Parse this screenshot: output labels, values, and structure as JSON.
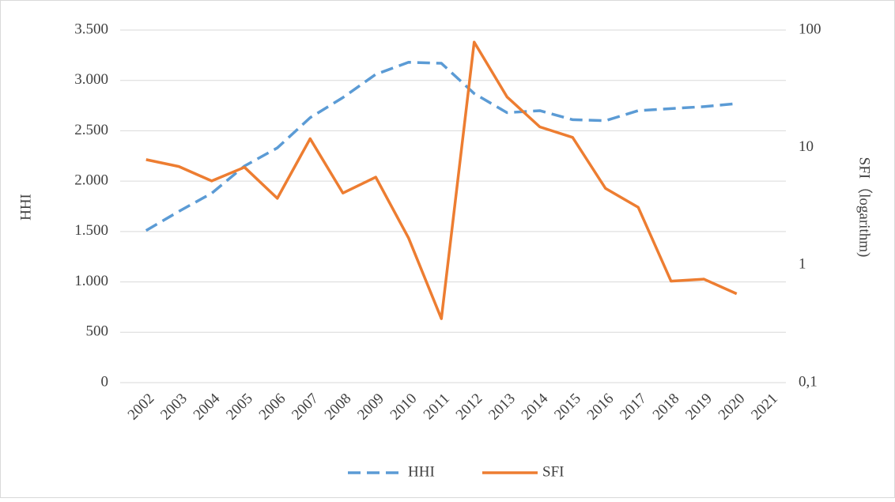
{
  "chart_data": {
    "type": "line",
    "categories": [
      "2002",
      "2003",
      "2004",
      "2005",
      "2006",
      "2007",
      "2008",
      "2009",
      "2010",
      "2011",
      "2012",
      "2013",
      "2014",
      "2015",
      "2016",
      "2017",
      "2018",
      "2019",
      "2020",
      "2021"
    ],
    "series": [
      {
        "name": "HHI",
        "color": "#5b9bd5",
        "dash": "dashed",
        "values": [
          1510,
          1700,
          1880,
          2150,
          2330,
          2630,
          2830,
          3060,
          3180,
          3170,
          2870,
          2680,
          2700,
          2610,
          2600,
          2700,
          2720,
          2740,
          2770,
          null
        ]
      },
      {
        "name": "SFI",
        "color": "#ed7d31",
        "axis": "y2",
        "values": [
          7.9,
          6.9,
          5.2,
          6.8,
          3.7,
          11.9,
          4.1,
          5.6,
          1.7,
          0.35,
          79,
          27,
          15,
          12.2,
          4.5,
          3.1,
          0.73,
          0.76,
          0.57,
          null
        ]
      }
    ],
    "ylabel": "HHI",
    "y2label": "SFI（logarithm)",
    "ylim": [
      0,
      3500
    ],
    "yticks": [
      0,
      {
        "value": 500,
        "label": "500"
      },
      {
        "value": 1000,
        "label": "1.000"
      },
      {
        "value": 1500,
        "label": "1.500"
      },
      {
        "value": 2000,
        "label": "2.000"
      },
      {
        "value": 2500,
        "label": "2.500"
      },
      {
        "value": 3000,
        "label": "3.000"
      },
      {
        "value": 3500,
        "label": "3.500"
      }
    ],
    "y2lim": [
      0.1,
      100
    ],
    "y2log": true,
    "y2ticks": [
      {
        "value": 0.1,
        "label": "0,1"
      },
      1,
      10,
      100
    ],
    "grid": true,
    "legend": "bottom"
  }
}
